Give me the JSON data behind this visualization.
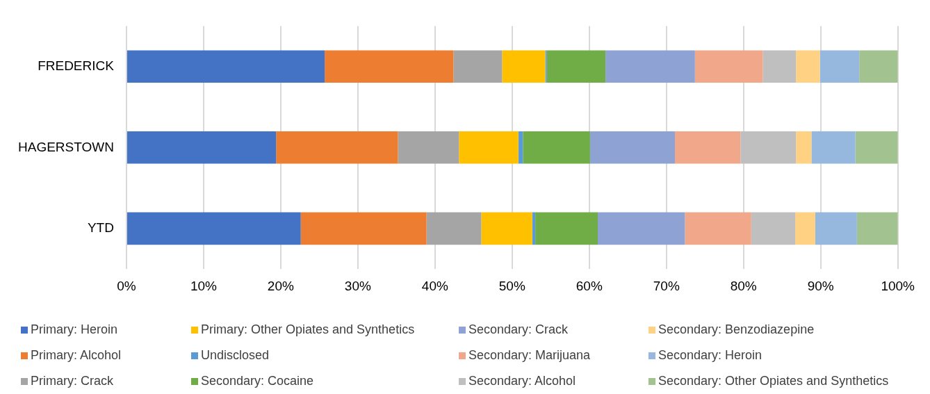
{
  "chart_data": {
    "type": "bar",
    "orientation": "horizontal",
    "stacked": true,
    "categories": [
      "FREDERICK",
      "HAGERSTOWN",
      "YTD"
    ],
    "series": [
      {
        "name": "Primary: Heroin",
        "color": "#4472c4",
        "values": [
          25.7,
          19.4,
          22.6
        ]
      },
      {
        "name": "Primary: Alcohol",
        "color": "#ed7d31",
        "values": [
          16.7,
          15.8,
          16.3
        ]
      },
      {
        "name": "Primary: Crack",
        "color": "#a5a5a5",
        "values": [
          6.3,
          7.9,
          7.1
        ]
      },
      {
        "name": "Primary: Other Opiates and Synthetics",
        "color": "#ffc000",
        "values": [
          5.6,
          7.7,
          6.6
        ]
      },
      {
        "name": "Undisclosed",
        "color": "#5b9bd5",
        "values": [
          0.2,
          0.6,
          0.4
        ]
      },
      {
        "name": "Secondary: Cocaine",
        "color": "#70ad47",
        "values": [
          7.6,
          8.7,
          8.1
        ]
      },
      {
        "name": "Secondary: Crack",
        "color": "#8fa2d4",
        "values": [
          11.6,
          11.0,
          11.3
        ]
      },
      {
        "name": "Secondary: Marijuana",
        "color": "#f1a78a",
        "values": [
          8.8,
          8.5,
          8.6
        ]
      },
      {
        "name": "Secondary: Alcohol",
        "color": "#bfbfbf",
        "values": [
          4.3,
          7.2,
          5.7
        ]
      },
      {
        "name": "Secondary: Benzodiazepine",
        "color": "#ffd182",
        "values": [
          3.1,
          2.0,
          2.6
        ]
      },
      {
        "name": "Secondary: Heroin",
        "color": "#97b8de",
        "values": [
          5.1,
          5.7,
          5.4
        ]
      },
      {
        "name": "Secondary: Other Opiates and Synthetics",
        "color": "#a2c38f",
        "values": [
          5.0,
          5.5,
          5.3
        ]
      }
    ],
    "xlim": [
      0,
      100
    ],
    "xticks": [
      {
        "value": 0,
        "label": "0%"
      },
      {
        "value": 10,
        "label": "10%"
      },
      {
        "value": 20,
        "label": "20%"
      },
      {
        "value": 30,
        "label": "30%"
      },
      {
        "value": 40,
        "label": "40%"
      },
      {
        "value": 50,
        "label": "50%"
      },
      {
        "value": 60,
        "label": "60%"
      },
      {
        "value": 70,
        "label": "70%"
      },
      {
        "value": 80,
        "label": "80%"
      },
      {
        "value": 90,
        "label": "90%"
      },
      {
        "value": 100,
        "label": "100%"
      }
    ],
    "grid": "x",
    "legend": "bottom"
  }
}
